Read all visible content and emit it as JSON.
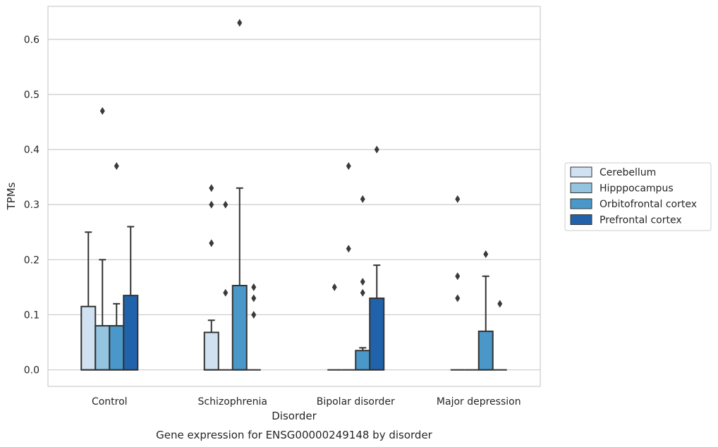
{
  "chart_data": {
    "type": "box",
    "title": "",
    "caption": "Gene expression for ENSG00000249148 by disorder",
    "xlabel": "Disorder",
    "ylabel": "TPMs",
    "ylim": [
      -0.03,
      0.66
    ],
    "yticks": [
      0.0,
      0.1,
      0.2,
      0.3,
      0.4,
      0.5,
      0.6
    ],
    "ytick_labels": [
      "0.0",
      "0.1",
      "0.2",
      "0.3",
      "0.4",
      "0.5",
      "0.6"
    ],
    "grid": "horizontal",
    "legend_position": "right",
    "categories": [
      "Control",
      "Schizophrenia",
      "Bipolar disorder",
      "Major depression"
    ],
    "series": [
      {
        "name": "Cerebellum",
        "color": "#d0e1f2",
        "boxes": [
          {
            "q1": 0.0,
            "median": 0.0,
            "q3": 0.115,
            "whisker_low": 0.0,
            "whisker_high": 0.25,
            "outliers": []
          },
          {
            "q1": 0.0,
            "median": 0.0,
            "q3": 0.068,
            "whisker_low": 0.0,
            "whisker_high": 0.09,
            "outliers": [
              0.23,
              0.3,
              0.33
            ]
          },
          {
            "q1": 0.0,
            "median": 0.0,
            "q3": 0.0,
            "whisker_low": 0.0,
            "whisker_high": 0.0,
            "outliers": [
              0.15
            ]
          },
          {
            "q1": 0.0,
            "median": 0.0,
            "q3": 0.0,
            "whisker_low": 0.0,
            "whisker_high": 0.0,
            "outliers": [
              0.13,
              0.17,
              0.31
            ]
          }
        ]
      },
      {
        "name": "Hipppocampus",
        "color": "#94c4df",
        "boxes": [
          {
            "q1": 0.0,
            "median": 0.0,
            "q3": 0.08,
            "whisker_low": 0.0,
            "whisker_high": 0.2,
            "outliers": [
              0.47
            ]
          },
          {
            "q1": 0.0,
            "median": 0.0,
            "q3": 0.0,
            "whisker_low": 0.0,
            "whisker_high": 0.0,
            "outliers": [
              0.14,
              0.3
            ]
          },
          {
            "q1": 0.0,
            "median": 0.0,
            "q3": 0.0,
            "whisker_low": 0.0,
            "whisker_high": 0.0,
            "outliers": [
              0.22,
              0.37
            ]
          },
          {
            "q1": 0.0,
            "median": 0.0,
            "q3": 0.0,
            "whisker_low": 0.0,
            "whisker_high": 0.0,
            "outliers": []
          }
        ]
      },
      {
        "name": "Orbitofrontal cortex",
        "color": "#4a98c9",
        "boxes": [
          {
            "q1": 0.0,
            "median": 0.0,
            "q3": 0.08,
            "whisker_low": 0.0,
            "whisker_high": 0.12,
            "outliers": [
              0.37
            ]
          },
          {
            "q1": 0.0,
            "median": 0.0,
            "q3": 0.153,
            "whisker_low": 0.0,
            "whisker_high": 0.33,
            "outliers": [
              0.63
            ]
          },
          {
            "q1": 0.0,
            "median": 0.0,
            "q3": 0.035,
            "whisker_low": 0.0,
            "whisker_high": 0.04,
            "outliers": [
              0.14,
              0.16,
              0.31
            ]
          },
          {
            "q1": 0.0,
            "median": 0.0,
            "q3": 0.07,
            "whisker_low": 0.0,
            "whisker_high": 0.17,
            "outliers": [
              0.21
            ]
          }
        ]
      },
      {
        "name": "Prefrontal cortex",
        "color": "#2163aa",
        "boxes": [
          {
            "q1": 0.0,
            "median": 0.0,
            "q3": 0.135,
            "whisker_low": 0.0,
            "whisker_high": 0.26,
            "outliers": []
          },
          {
            "q1": 0.0,
            "median": 0.0,
            "q3": 0.0,
            "whisker_low": 0.0,
            "whisker_high": 0.0,
            "outliers": [
              0.1,
              0.13,
              0.15
            ]
          },
          {
            "q1": 0.0,
            "median": 0.0,
            "q3": 0.13,
            "whisker_low": 0.0,
            "whisker_high": 0.19,
            "outliers": [
              0.4
            ]
          },
          {
            "q1": 0.0,
            "median": 0.0,
            "q3": 0.0,
            "whisker_low": 0.0,
            "whisker_high": 0.0,
            "outliers": [
              0.12
            ]
          }
        ]
      }
    ]
  }
}
